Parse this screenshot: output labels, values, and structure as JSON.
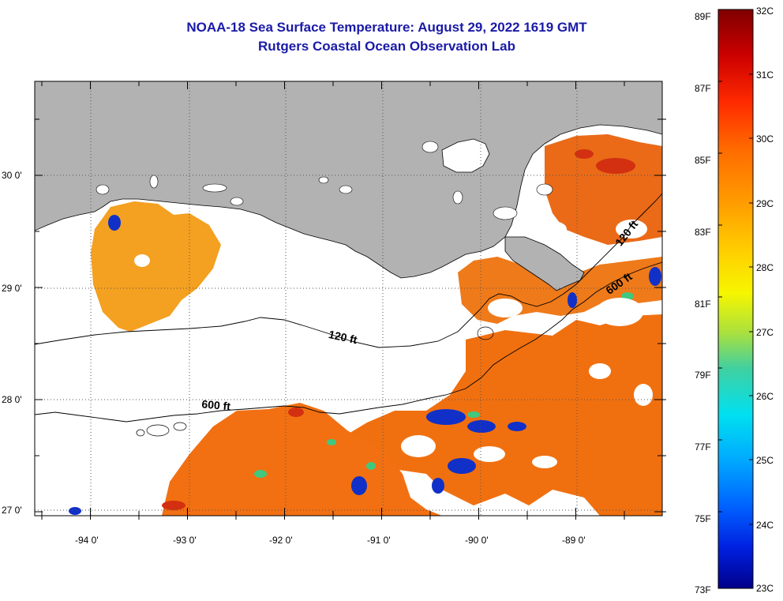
{
  "title": "NOAA-18 Sea Surface Temperature:  August 29, 2022 1619 GMT",
  "subtitle": "Rutgers Coastal Ocean Observation Lab",
  "map": {
    "lon_labels": [
      "-94 0'",
      "-93 0'",
      "-92 0'",
      "-91 0'",
      "-90 0'",
      "-89 0'"
    ],
    "lat_labels": [
      "30 0'",
      "29 0'",
      "28 0'",
      "27 0'"
    ],
    "contours": [
      {
        "label": "120 ft"
      },
      {
        "label": "600 ft"
      },
      {
        "label": "120 ft"
      },
      {
        "label": "600 ft"
      }
    ],
    "colors": {
      "land": "#b2b2b2",
      "cloud": "#ffffff",
      "frame": "#000000"
    }
  },
  "colorbar": {
    "fahrenheit_labels": [
      "89F",
      "87F",
      "85F",
      "83F",
      "81F",
      "79F",
      "77F",
      "75F",
      "73F"
    ],
    "celsius_labels": [
      "32C",
      "31C",
      "30C",
      "29C",
      "28C",
      "27C",
      "26C",
      "25C",
      "24C",
      "23C"
    ],
    "gradient": [
      "#800000",
      "#cc0000",
      "#ff2a00",
      "#ff6a00",
      "#ff9a00",
      "#ffd000",
      "#f6f600",
      "#a8e040",
      "#40d0a0",
      "#00e0f0",
      "#00a8ff",
      "#0060ff",
      "#0020e0",
      "#00008a"
    ]
  }
}
